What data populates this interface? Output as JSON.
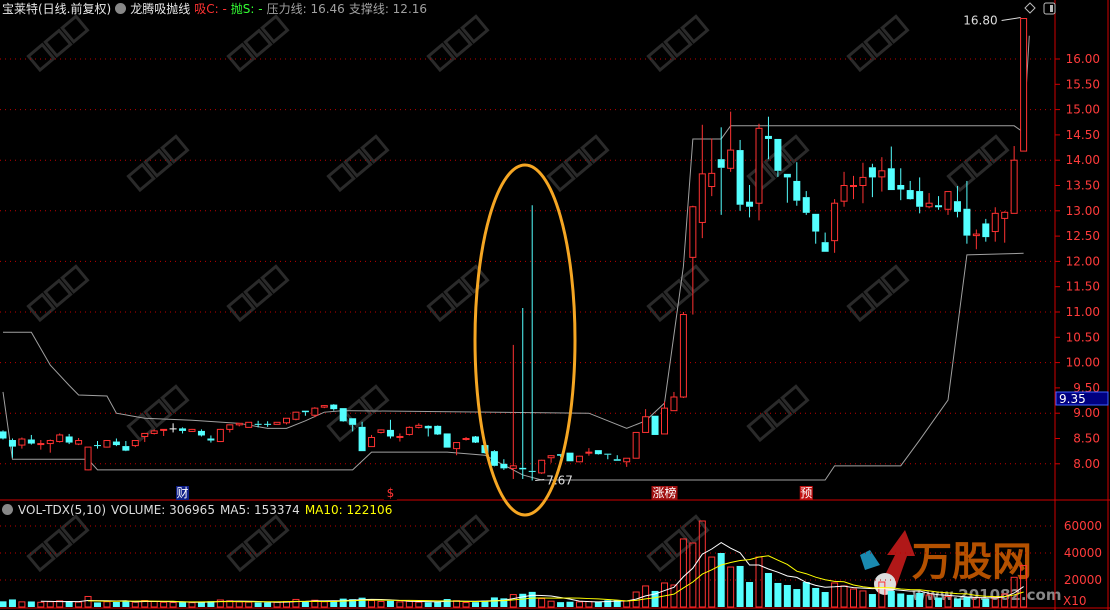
{
  "header": {
    "stock": "宝莱特(日线.前复权)",
    "indicator": "龙腾吸抛线",
    "buy": "吸C: -",
    "sell": "抛S: -",
    "pressure": "压力线: 16.46",
    "support": "支撑线: 12.16"
  },
  "volume_header": {
    "name": "VOL-TDX(5,10)",
    "volume": "VOLUME: 306965",
    "ma5": "MA5: 153374",
    "ma10": "MA10: 122106"
  },
  "colors": {
    "up": "#ff3232",
    "down": "#54ffff",
    "grid": "#c00000",
    "line": "#a0a0a0",
    "ma5": "#ffffff",
    "ma10": "#ffff00",
    "ellipse": "#f5a623",
    "price_tag": "#000080"
  },
  "icons": [
    "dropdown-circle-icon",
    "diamond-icon",
    "toggle-panel-icon"
  ],
  "chart_data": [
    {
      "type": "candlestick",
      "ylim": [
        7.6,
        16.9
      ],
      "yticks": [
        "16.00",
        "15.50",
        "15.00",
        "14.50",
        "14.00",
        "13.50",
        "13.00",
        "12.50",
        "12.00",
        "11.50",
        "11.00",
        "10.50",
        "10.00",
        "9.50",
        "9.00",
        "8.50",
        "8.00"
      ],
      "grid": "dotted at integer prices",
      "current_price_tag": "9.35",
      "high_label": "16.80",
      "low_label": "7.67",
      "candles_ohlc": [
        [
          8.64,
          8.66,
          8.48,
          8.5
        ],
        [
          8.47,
          8.5,
          8.12,
          8.34
        ],
        [
          8.37,
          8.52,
          8.3,
          8.49
        ],
        [
          8.48,
          8.57,
          8.38,
          8.4
        ],
        [
          8.39,
          8.47,
          8.28,
          8.4
        ],
        [
          8.4,
          8.48,
          8.22,
          8.46
        ],
        [
          8.44,
          8.6,
          8.42,
          8.57
        ],
        [
          8.54,
          8.59,
          8.39,
          8.42
        ],
        [
          8.39,
          8.51,
          8.37,
          8.46
        ],
        [
          7.88,
          8.33,
          7.87,
          8.33
        ],
        [
          8.37,
          8.45,
          8.3,
          8.36
        ],
        [
          8.33,
          8.47,
          8.32,
          8.46
        ],
        [
          8.44,
          8.5,
          8.35,
          8.37
        ],
        [
          8.35,
          8.45,
          8.25,
          8.26
        ],
        [
          8.36,
          8.47,
          8.33,
          8.46
        ],
        [
          8.54,
          8.61,
          8.43,
          8.6
        ],
        [
          8.6,
          8.68,
          8.58,
          8.65
        ],
        [
          8.67,
          8.68,
          8.55,
          8.68
        ],
        [
          8.7,
          8.8,
          8.62,
          8.7
        ],
        [
          8.7,
          8.72,
          8.6,
          8.65
        ],
        [
          8.64,
          8.69,
          8.63,
          8.68
        ],
        [
          8.65,
          8.68,
          8.54,
          8.56
        ],
        [
          8.5,
          8.56,
          8.42,
          8.46
        ],
        [
          8.44,
          8.69,
          8.43,
          8.68
        ],
        [
          8.68,
          8.78,
          8.62,
          8.77
        ],
        [
          8.77,
          8.8,
          8.74,
          8.8
        ],
        [
          8.72,
          8.82,
          8.72,
          8.82
        ],
        [
          8.79,
          8.85,
          8.72,
          8.78
        ],
        [
          8.79,
          8.84,
          8.73,
          8.78
        ],
        [
          8.78,
          8.82,
          8.78,
          8.82
        ],
        [
          8.81,
          8.9,
          8.78,
          8.9
        ],
        [
          8.88,
          9.03,
          8.86,
          9.02
        ],
        [
          9.05,
          9.05,
          8.95,
          9.02
        ],
        [
          8.96,
          9.12,
          8.92,
          9.1
        ],
        [
          9.12,
          9.16,
          9.1,
          9.15
        ],
        [
          9.17,
          9.18,
          9.05,
          9.08
        ],
        [
          9.1,
          9.1,
          8.83,
          8.84
        ],
        [
          8.9,
          8.9,
          8.64,
          8.77
        ],
        [
          8.73,
          8.83,
          8.25,
          8.25
        ],
        [
          8.34,
          8.57,
          8.34,
          8.52
        ],
        [
          8.62,
          8.68,
          8.6,
          8.67
        ],
        [
          8.67,
          8.87,
          8.5,
          8.54
        ],
        [
          8.53,
          8.6,
          8.44,
          8.54
        ],
        [
          8.58,
          8.74,
          8.56,
          8.72
        ],
        [
          8.72,
          8.8,
          8.7,
          8.76
        ],
        [
          8.75,
          8.76,
          8.54,
          8.7
        ],
        [
          8.75,
          8.76,
          8.57,
          8.58
        ],
        [
          8.6,
          8.6,
          8.32,
          8.32
        ],
        [
          8.3,
          8.42,
          8.17,
          8.42
        ],
        [
          8.48,
          8.53,
          8.46,
          8.5
        ],
        [
          8.54,
          8.55,
          8.41,
          8.42
        ],
        [
          8.37,
          8.4,
          8.2,
          8.21
        ],
        [
          8.25,
          8.27,
          7.95,
          7.96
        ],
        [
          8.0,
          8.09,
          7.88,
          7.91
        ],
        [
          7.91,
          10.35,
          7.7,
          7.96
        ],
        [
          7.92,
          11.08,
          7.7,
          7.89
        ],
        [
          7.86,
          13.11,
          7.67,
          7.85
        ],
        [
          7.82,
          8.08,
          7.8,
          8.07
        ],
        [
          8.12,
          8.17,
          8.02,
          8.16
        ],
        [
          8.19,
          8.19,
          8.13,
          8.16
        ],
        [
          8.22,
          8.22,
          8.05,
          8.05
        ],
        [
          8.04,
          8.16,
          8.03,
          8.15
        ],
        [
          8.22,
          8.31,
          8.16,
          8.23
        ],
        [
          8.27,
          8.27,
          8.18,
          8.19
        ],
        [
          8.2,
          8.2,
          8.09,
          8.18
        ],
        [
          8.09,
          8.17,
          8.06,
          8.06
        ],
        [
          8.04,
          8.11,
          7.94,
          8.11
        ],
        [
          8.11,
          8.62,
          8.11,
          8.62
        ],
        [
          8.62,
          9.08,
          8.62,
          8.93
        ],
        [
          8.95,
          8.95,
          8.57,
          8.57
        ],
        [
          8.59,
          9.23,
          8.59,
          9.1
        ],
        [
          9.05,
          9.42,
          9.05,
          9.32
        ],
        [
          9.32,
          11.0,
          9.3,
          10.95
        ],
        [
          12.08,
          13.1,
          10.95,
          13.08
        ],
        [
          12.77,
          14.7,
          12.46,
          13.73
        ],
        [
          13.48,
          14.43,
          13.29,
          13.74
        ],
        [
          14.02,
          14.65,
          12.92,
          13.85
        ],
        [
          13.84,
          14.96,
          13.77,
          14.2
        ],
        [
          14.2,
          14.4,
          13.0,
          13.12
        ],
        [
          13.18,
          13.51,
          12.87,
          13.08
        ],
        [
          13.15,
          14.72,
          12.81,
          14.63
        ],
        [
          14.48,
          14.86,
          14.02,
          14.42
        ],
        [
          14.42,
          14.42,
          13.67,
          13.79
        ],
        [
          13.73,
          13.73,
          13.16,
          13.66
        ],
        [
          13.59,
          13.96,
          13.1,
          13.2
        ],
        [
          13.27,
          13.39,
          12.92,
          12.96
        ],
        [
          12.94,
          12.94,
          12.35,
          12.59
        ],
        [
          12.38,
          12.57,
          12.19,
          12.19
        ],
        [
          12.41,
          13.23,
          12.17,
          13.15
        ],
        [
          13.19,
          13.77,
          13.08,
          13.5
        ],
        [
          13.49,
          13.69,
          13.23,
          13.5
        ],
        [
          13.5,
          13.95,
          13.15,
          13.66
        ],
        [
          13.86,
          13.93,
          13.27,
          13.66
        ],
        [
          13.67,
          14.06,
          13.38,
          13.79
        ],
        [
          13.84,
          14.27,
          13.41,
          13.41
        ],
        [
          13.51,
          13.84,
          13.21,
          13.42
        ],
        [
          13.41,
          13.59,
          13.22,
          13.23
        ],
        [
          13.39,
          13.66,
          12.95,
          13.08
        ],
        [
          13.08,
          13.35,
          13.05,
          13.15
        ],
        [
          13.11,
          13.29,
          13.02,
          13.07
        ],
        [
          13.03,
          13.38,
          12.92,
          13.38
        ],
        [
          13.19,
          13.49,
          12.87,
          12.98
        ],
        [
          13.04,
          13.59,
          12.35,
          12.51
        ],
        [
          12.51,
          12.63,
          12.24,
          12.54
        ],
        [
          12.75,
          12.84,
          12.39,
          12.48
        ],
        [
          12.59,
          13.07,
          12.39,
          12.95
        ],
        [
          12.85,
          12.99,
          12.37,
          12.97
        ],
        [
          12.95,
          14.28,
          12.95,
          14.0
        ],
        [
          14.18,
          16.8,
          14.18,
          16.8
        ]
      ],
      "resistance_line": [
        [
          0,
          10.6
        ],
        [
          3,
          10.6
        ],
        [
          5,
          9.95
        ],
        [
          7,
          9.55
        ],
        [
          8,
          9.36
        ],
        [
          11,
          9.34
        ],
        [
          12,
          9.0
        ],
        [
          15,
          8.9
        ],
        [
          20,
          8.86
        ],
        [
          25,
          8.8
        ],
        [
          28,
          8.7
        ],
        [
          30,
          8.7
        ],
        [
          32,
          8.85
        ],
        [
          34,
          9.02
        ],
        [
          36,
          9.05
        ],
        [
          62,
          9.0
        ],
        [
          66,
          8.7
        ],
        [
          68,
          8.85
        ],
        [
          70,
          9.2
        ],
        [
          72,
          11.9
        ],
        [
          73,
          14.42
        ],
        [
          76,
          14.42
        ],
        [
          77,
          14.68
        ],
        [
          107,
          14.68
        ],
        [
          108,
          14.55
        ],
        [
          108.6,
          16.46
        ]
      ],
      "support_line": [
        [
          0,
          9.42
        ],
        [
          1,
          8.09
        ],
        [
          9,
          8.09
        ],
        [
          10,
          7.88
        ],
        [
          37,
          7.88
        ],
        [
          39,
          8.23
        ],
        [
          47,
          8.23
        ],
        [
          51,
          8.17
        ],
        [
          55,
          7.78
        ],
        [
          57,
          7.68
        ],
        [
          87,
          7.68
        ],
        [
          88,
          7.96
        ],
        [
          95,
          7.96
        ],
        [
          97,
          8.47
        ],
        [
          100,
          9.26
        ],
        [
          102,
          12.13
        ],
        [
          108,
          12.16
        ]
      ],
      "markers": [
        {
          "index": 19,
          "label": "财",
          "bg": "#10208a",
          "fg": "#ffffff"
        },
        {
          "index": 41,
          "label": "$",
          "bg": "#000000",
          "fg": "#ff3232"
        },
        {
          "index": 70,
          "label": "涨榜",
          "bg": "#a01010",
          "fg": "#ffffff"
        },
        {
          "index": 85,
          "label": "预",
          "bg": "#c01010",
          "fg": "#ffffff"
        }
      ]
    },
    {
      "type": "bar",
      "title": "VOL-TDX(5,10)",
      "unit_label": "X10",
      "yticks": [
        "60000",
        "40000",
        "20000"
      ],
      "ylim": [
        0,
        64000
      ],
      "volumes": [
        4200,
        5600,
        3800,
        4100,
        3500,
        3900,
        4600,
        4300,
        3600,
        7800,
        3400,
        3900,
        3700,
        4400,
        3600,
        4800,
        4100,
        3500,
        3300,
        3700,
        3200,
        3900,
        4300,
        5200,
        4600,
        3800,
        3600,
        3400,
        3300,
        3500,
        4100,
        5600,
        4300,
        5000,
        3900,
        4400,
        6200,
        5800,
        6900,
        4800,
        4100,
        4600,
        3800,
        4200,
        3600,
        3500,
        4000,
        5900,
        4700,
        3300,
        3600,
        4800,
        7100,
        6400,
        9200,
        9800,
        11200,
        6200,
        4300,
        3600,
        3900,
        3800,
        4100,
        3700,
        5000,
        5000,
        4500,
        11100,
        15600,
        11900,
        17800,
        16300,
        50400,
        47400,
        63700,
        37000,
        40000,
        29600,
        30400,
        18500,
        37000,
        25200,
        17800,
        16300,
        13300,
        18500,
        14100,
        11100,
        17800,
        15600,
        13300,
        11900,
        9600,
        18500,
        11900,
        10000,
        9000,
        10400,
        8900,
        7000,
        7800,
        6300,
        7400,
        6900,
        6000,
        7400,
        9600,
        22000,
        30697
      ]
    }
  ],
  "watermark": {
    "brand": "万股网",
    "url": "www.201082.com"
  }
}
